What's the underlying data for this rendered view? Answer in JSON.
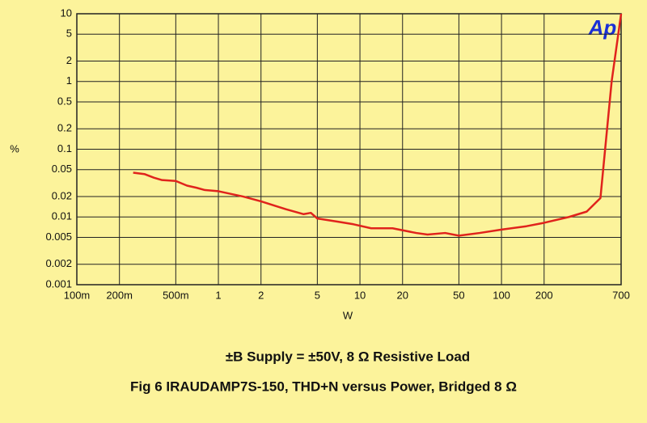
{
  "chart_data": {
    "type": "line",
    "title": "Fig 6 IRAUDAMP7S-150, THD+N versus Power, Bridged 8 Ω",
    "subtitle": "±B Supply = ±50V,  8 Ω Resistive Load",
    "x_label": "W",
    "y_label": "%",
    "logo": "Ap",
    "xscale": "log",
    "yscale": "log",
    "grid": true,
    "xlim": [
      0.1,
      700
    ],
    "ylim": [
      0.001,
      10
    ],
    "xticks": [
      {
        "value": 0.1,
        "label": "100m"
      },
      {
        "value": 0.2,
        "label": "200m"
      },
      {
        "value": 0.5,
        "label": "500m"
      },
      1,
      2,
      5,
      10,
      20,
      50,
      100,
      200,
      700
    ],
    "yticks": [
      0.001,
      0.002,
      0.005,
      0.01,
      0.02,
      0.05,
      0.1,
      0.2,
      0.5,
      1,
      2,
      5,
      10
    ],
    "x": [
      0.25,
      0.3,
      0.35,
      0.4,
      0.5,
      0.6,
      0.7,
      0.8,
      1,
      1.5,
      2,
      3,
      4,
      4.5,
      5,
      7,
      9,
      12,
      17,
      25,
      30,
      40,
      50,
      70,
      100,
      150,
      200,
      300,
      400,
      500,
      600,
      700
    ],
    "series": [
      {
        "name": "THD+N",
        "color": "#e0231c",
        "values": [
          0.045,
          0.043,
          0.038,
          0.035,
          0.034,
          0.029,
          0.027,
          0.025,
          0.024,
          0.02,
          0.017,
          0.013,
          0.011,
          0.0115,
          0.0095,
          0.0085,
          0.0078,
          0.0068,
          0.0068,
          0.0058,
          0.0055,
          0.0058,
          0.0053,
          0.0058,
          0.0065,
          0.0073,
          0.0082,
          0.01,
          0.012,
          0.019,
          1,
          10
        ]
      }
    ]
  }
}
